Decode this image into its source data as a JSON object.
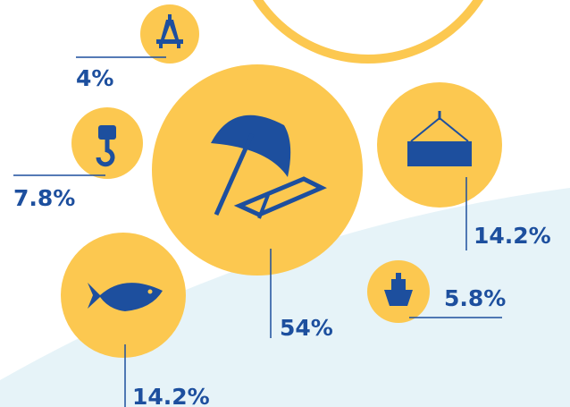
{
  "items": [
    {
      "label": "4%"
    },
    {
      "label": "7.8%"
    },
    {
      "label": "54%"
    },
    {
      "label": "14.2%"
    },
    {
      "label": "5.8%"
    },
    {
      "label": "14.2%"
    }
  ]
}
